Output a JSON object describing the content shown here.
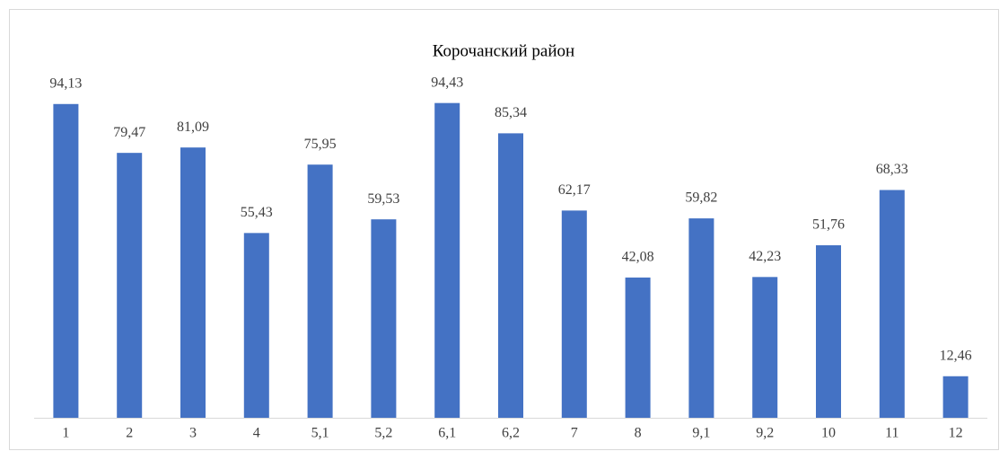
{
  "chart_data": {
    "type": "bar",
    "title": "Корочанский район",
    "categories": [
      "1",
      "2",
      "3",
      "4",
      "5,1",
      "5,2",
      "6,1",
      "6,2",
      "7",
      "8",
      "9,1",
      "9,2",
      "10",
      "11",
      "12"
    ],
    "values": [
      94.13,
      79.47,
      81.09,
      55.43,
      75.95,
      59.53,
      94.43,
      85.34,
      62.17,
      42.08,
      59.82,
      42.23,
      51.76,
      68.33,
      12.46
    ],
    "value_labels": [
      "94,13",
      "79,47",
      "81,09",
      "55,43",
      "75,95",
      "59,53",
      "94,43",
      "85,34",
      "62,17",
      "42,08",
      "59,82",
      "42,23",
      "51,76",
      "68,33",
      "12,46"
    ],
    "color": "#4472c4"
  }
}
